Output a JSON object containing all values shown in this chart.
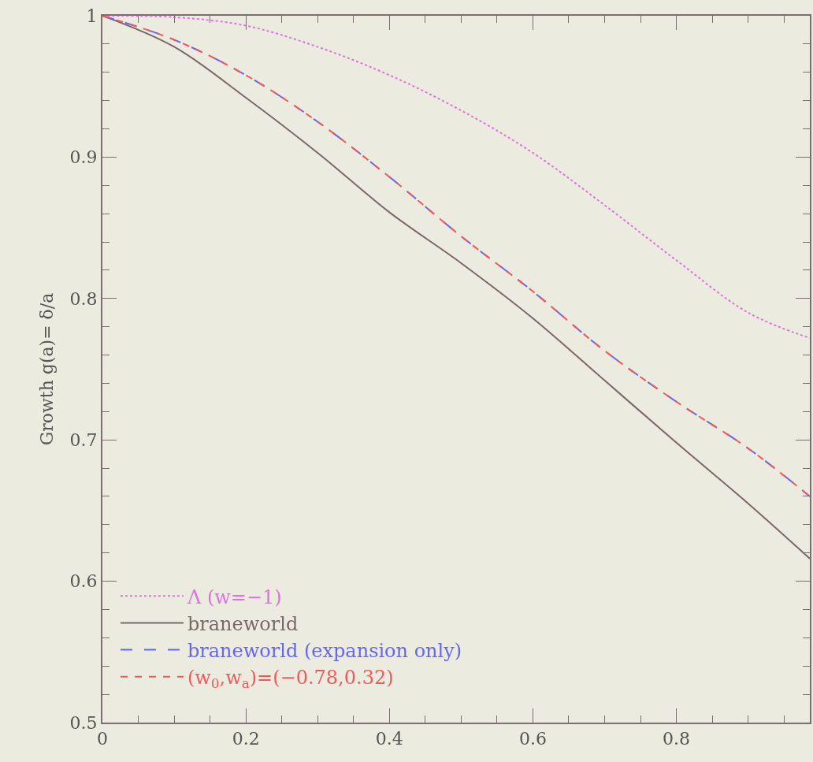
{
  "chart_data": {
    "type": "line",
    "ylabel": "Growth g(a)= δ/a",
    "x": [
      0,
      0.1,
      0.2,
      0.3,
      0.4,
      0.5,
      0.6,
      0.7,
      0.8,
      0.9,
      0.986
    ],
    "series": [
      {
        "name": "Λ (w=−1)",
        "color": "#e070e0",
        "line_style": "dotted",
        "values": [
          1,
          0.999,
          0.993,
          0.978,
          0.958,
          0.933,
          0.903,
          0.866,
          0.827,
          0.79,
          0.772
        ]
      },
      {
        "name": "braneworld",
        "color": "#7a6868",
        "line_style": "solid",
        "values": [
          1,
          0.978,
          0.942,
          0.903,
          0.861,
          0.825,
          0.786,
          0.742,
          0.698,
          0.655,
          0.616
        ]
      },
      {
        "name": "braneworld (expansion only)",
        "color": "#6666ee",
        "line_style": "longdash",
        "values": [
          1,
          0.983,
          0.958,
          0.925,
          0.886,
          0.844,
          0.805,
          0.763,
          0.727,
          0.694,
          0.66
        ]
      },
      {
        "name": "(w$_{0}$,w$_{a}$)=(−0.78,0.32)",
        "color": "#ee5a5a",
        "line_style": "dashed",
        "values": [
          1,
          0.983,
          0.958,
          0.925,
          0.886,
          0.844,
          0.805,
          0.763,
          0.727,
          0.694,
          0.66
        ]
      }
    ],
    "xlim": [
      0,
      0.986
    ],
    "xticks": [
      0,
      0.2,
      0.4,
      0.6,
      0.8
    ],
    "ylim": [
      0.5,
      1
    ],
    "yticks": [
      0.5,
      0.6,
      0.7,
      0.8,
      0.9,
      1
    ],
    "grid": false,
    "legend": "bottom left",
    "marker": "none"
  }
}
